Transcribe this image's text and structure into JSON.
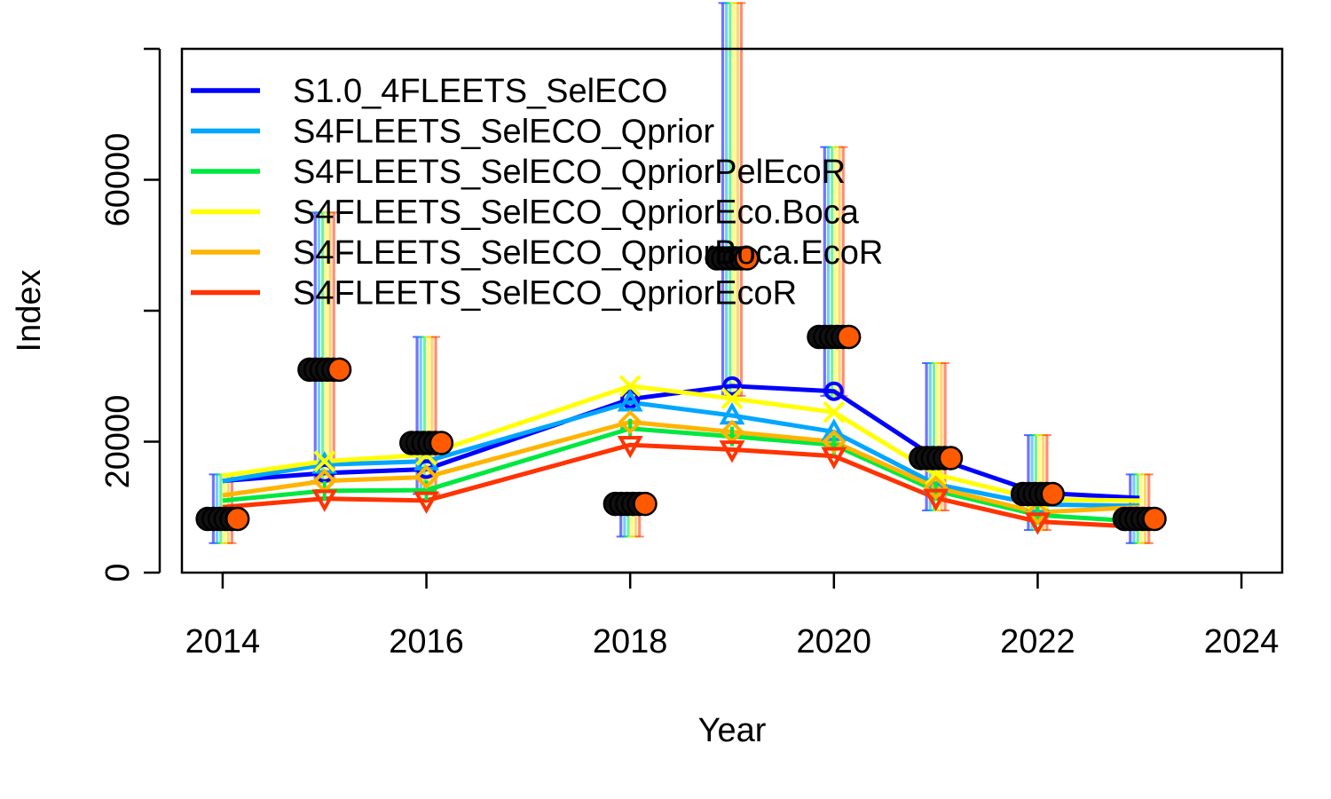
{
  "chart_data": {
    "type": "line",
    "xlabel": "Year",
    "ylabel": "Index",
    "xlim": [
      2013.6,
      2024.4
    ],
    "ylim": [
      0,
      80000
    ],
    "x_ticks": [
      "2014",
      "2016",
      "2018",
      "2020",
      "2022",
      "2024"
    ],
    "y_ticks": [
      "0",
      "20000",
      "60000"
    ],
    "y_minor_ticks": [
      40000,
      80000
    ],
    "legend_position": "top-left",
    "observed": {
      "x": [
        2014,
        2015,
        2016,
        2018,
        2019,
        2020,
        2021,
        2022,
        2023
      ],
      "y": [
        8200,
        31000,
        19800,
        10500,
        48000,
        36000,
        17500,
        12000,
        8200
      ],
      "lower": [
        4500,
        14000,
        12000,
        5500,
        27000,
        27000,
        9500,
        6500,
        4500
      ],
      "upper": [
        15000,
        55000,
        36000,
        12000,
        87000,
        65000,
        32000,
        21000,
        15000
      ]
    },
    "series": [
      {
        "name": "S1.0_4FLEETS_SelECO",
        "color": "#0000ff",
        "marker": "circle",
        "x": [
          2014,
          2015,
          2016,
          2018,
          2019,
          2020,
          2021,
          2022,
          2023
        ],
        "values": [
          14000,
          15200,
          15800,
          26500,
          28500,
          27700,
          17500,
          12200,
          11400
        ]
      },
      {
        "name": "S4FLEETS_SelECO_Qprior",
        "color": "#00a6ff",
        "marker": "triangle-up",
        "x": [
          2014,
          2015,
          2016,
          2018,
          2019,
          2020,
          2021,
          2022,
          2023
        ],
        "values": [
          14000,
          16500,
          17000,
          26000,
          24000,
          21500,
          13500,
          10400,
          10200
        ]
      },
      {
        "name": "S4FLEETS_SelECO_QpriorPelEcoR",
        "color": "#00e840",
        "marker": "plus",
        "x": [
          2014,
          2015,
          2016,
          2018,
          2019,
          2020,
          2021,
          2022,
          2023
        ],
        "values": [
          11000,
          12500,
          12600,
          22000,
          20800,
          19500,
          12500,
          8800,
          7800
        ]
      },
      {
        "name": "S4FLEETS_SelECO_QpriorEco.Boca",
        "color": "#ffff00",
        "marker": "cross",
        "x": [
          2014,
          2015,
          2016,
          2018,
          2019,
          2020,
          2021,
          2022,
          2023
        ],
        "values": [
          14800,
          17000,
          18000,
          28500,
          26600,
          24500,
          15000,
          11200,
          11000
        ]
      },
      {
        "name": "S4FLEETS_SelECO_QpriorBoca.EcoR",
        "color": "#ffb400",
        "marker": "diamond",
        "x": [
          2014,
          2015,
          2016,
          2018,
          2019,
          2020,
          2021,
          2022,
          2023
        ],
        "values": [
          11800,
          14000,
          14600,
          23000,
          21500,
          20000,
          13000,
          9200,
          10000
        ]
      },
      {
        "name": "S4FLEETS_SelECO_QpriorEcoR",
        "color": "#ff3300",
        "marker": "triangle-down",
        "x": [
          2014,
          2015,
          2016,
          2018,
          2019,
          2020,
          2021,
          2022,
          2023
        ],
        "values": [
          10000,
          11300,
          11000,
          19500,
          18800,
          17800,
          11400,
          7800,
          7000
        ]
      }
    ]
  }
}
